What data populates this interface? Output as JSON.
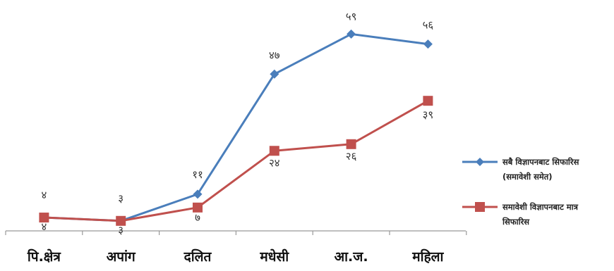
{
  "chart_data": {
    "type": "line",
    "categories": [
      "पि.क्षेत्र",
      "अपांग",
      "दलित",
      "मधेसी",
      "आ.ज.",
      "महिला"
    ],
    "ylim": [
      0,
      65
    ],
    "grid": false,
    "legend_position": "right",
    "series": [
      {
        "name_lines": [
          "सबै विज्ञापनबाट सिफारिस",
          "(समावेशी समेत)"
        ],
        "values": [
          4,
          3,
          11,
          47,
          59,
          56
        ],
        "labels": [
          "४",
          "३",
          "११",
          "४७",
          "५९",
          "५६"
        ],
        "color": "#4a7ebb",
        "marker": "diamond"
      },
      {
        "name_lines": [
          "समावेशी विज्ञापनबाट मात्र",
          "सिफारिस"
        ],
        "values": [
          4,
          3,
          7,
          24,
          26,
          39
        ],
        "labels": [
          "४",
          "३",
          "७",
          "२४",
          "२६",
          "३९"
        ],
        "color": "#c0504d",
        "marker": "square"
      }
    ]
  }
}
